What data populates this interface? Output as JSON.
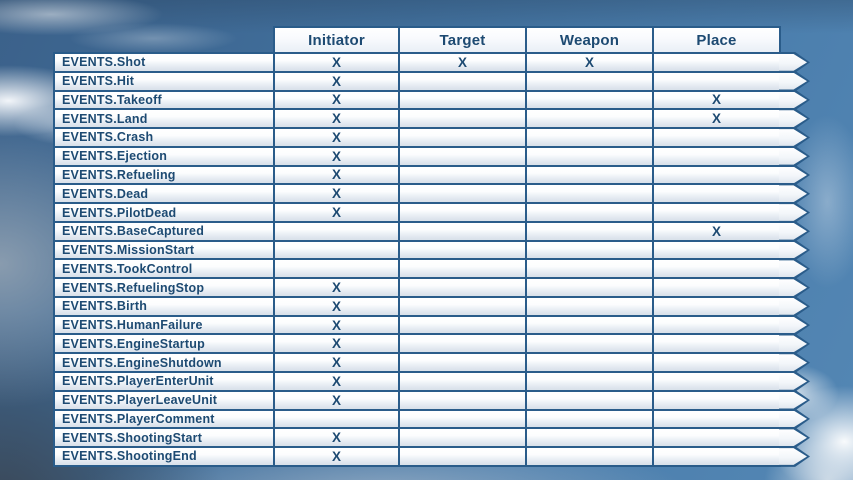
{
  "colors": {
    "border_blue": "#2a5c8a",
    "text_blue": "#1d4a72",
    "sky_top": "#3b618a",
    "sky_bottom_right": "#5487b4",
    "cloud_white": "#fcfdff",
    "cloud_shadow": "#3a4654"
  },
  "table": {
    "columns": [
      "Initiator",
      "Target",
      "Weapon",
      "Place"
    ],
    "rows": [
      {
        "label": "EVENTS.Shot",
        "values": [
          "X",
          "X",
          "X",
          ""
        ]
      },
      {
        "label": "EVENTS.Hit",
        "values": [
          "X",
          "",
          "",
          ""
        ]
      },
      {
        "label": "EVENTS.Takeoff",
        "values": [
          "X",
          "",
          "",
          "X"
        ]
      },
      {
        "label": "EVENTS.Land",
        "values": [
          "X",
          "",
          "",
          "X"
        ]
      },
      {
        "label": "EVENTS.Crash",
        "values": [
          "X",
          "",
          "",
          ""
        ]
      },
      {
        "label": "EVENTS.Ejection",
        "values": [
          "X",
          "",
          "",
          ""
        ]
      },
      {
        "label": "EVENTS.Refueling",
        "values": [
          "X",
          "",
          "",
          ""
        ]
      },
      {
        "label": "EVENTS.Dead",
        "values": [
          "X",
          "",
          "",
          ""
        ]
      },
      {
        "label": "EVENTS.PilotDead",
        "values": [
          "X",
          "",
          "",
          ""
        ]
      },
      {
        "label": "EVENTS.BaseCaptured",
        "values": [
          "",
          "",
          "",
          "X"
        ]
      },
      {
        "label": "EVENTS.MissionStart",
        "values": [
          "",
          "",
          "",
          ""
        ]
      },
      {
        "label": "EVENTS.TookControl",
        "values": [
          "",
          "",
          "",
          ""
        ]
      },
      {
        "label": "EVENTS.RefuelingStop",
        "values": [
          "X",
          "",
          "",
          ""
        ]
      },
      {
        "label": "EVENTS.Birth",
        "values": [
          "X",
          "",
          "",
          ""
        ]
      },
      {
        "label": "EVENTS.HumanFailure",
        "values": [
          "X",
          "",
          "",
          ""
        ]
      },
      {
        "label": "EVENTS.EngineStartup",
        "values": [
          "X",
          "",
          "",
          ""
        ]
      },
      {
        "label": "EVENTS.EngineShutdown",
        "values": [
          "X",
          "",
          "",
          ""
        ]
      },
      {
        "label": "EVENTS.PlayerEnterUnit",
        "values": [
          "X",
          "",
          "",
          ""
        ]
      },
      {
        "label": "EVENTS.PlayerLeaveUnit",
        "values": [
          "X",
          "",
          "",
          ""
        ]
      },
      {
        "label": "EVENTS.PlayerComment",
        "values": [
          "",
          "",
          "",
          ""
        ]
      },
      {
        "label": "EVENTS.ShootingStart",
        "values": [
          "X",
          "",
          "",
          ""
        ]
      },
      {
        "label": "EVENTS.ShootingEnd",
        "values": [
          "X",
          "",
          "",
          ""
        ]
      }
    ]
  }
}
